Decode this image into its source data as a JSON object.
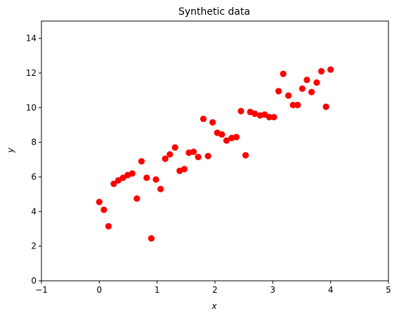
{
  "chart_data": {
    "type": "scatter",
    "title": "Synthetic data",
    "xlabel": "x",
    "ylabel": "y",
    "xlim": [
      -1,
      5
    ],
    "ylim": [
      0,
      15
    ],
    "xticks": [
      "−1",
      "0",
      "1",
      "2",
      "3",
      "4",
      "5"
    ],
    "yticks": [
      "0",
      "2",
      "4",
      "6",
      "8",
      "10",
      "12",
      "14"
    ],
    "grid": false,
    "marker_color": "#ff0000",
    "points": [
      {
        "x": 0.0,
        "y": 4.55
      },
      {
        "x": 0.08,
        "y": 4.1
      },
      {
        "x": 0.16,
        "y": 3.15
      },
      {
        "x": 0.25,
        "y": 5.6
      },
      {
        "x": 0.33,
        "y": 5.8
      },
      {
        "x": 0.41,
        "y": 5.95
      },
      {
        "x": 0.49,
        "y": 6.1
      },
      {
        "x": 0.57,
        "y": 6.2
      },
      {
        "x": 0.65,
        "y": 4.75
      },
      {
        "x": 0.73,
        "y": 6.9
      },
      {
        "x": 0.82,
        "y": 5.95
      },
      {
        "x": 0.9,
        "y": 2.45
      },
      {
        "x": 0.98,
        "y": 5.85
      },
      {
        "x": 1.06,
        "y": 5.3
      },
      {
        "x": 1.14,
        "y": 7.05
      },
      {
        "x": 1.22,
        "y": 7.3
      },
      {
        "x": 1.31,
        "y": 7.7
      },
      {
        "x": 1.39,
        "y": 6.35
      },
      {
        "x": 1.47,
        "y": 6.45
      },
      {
        "x": 1.55,
        "y": 7.4
      },
      {
        "x": 1.63,
        "y": 7.45
      },
      {
        "x": 1.71,
        "y": 7.15
      },
      {
        "x": 1.8,
        "y": 9.35
      },
      {
        "x": 1.88,
        "y": 7.2
      },
      {
        "x": 1.96,
        "y": 9.15
      },
      {
        "x": 2.04,
        "y": 8.55
      },
      {
        "x": 2.12,
        "y": 8.45
      },
      {
        "x": 2.2,
        "y": 8.1
      },
      {
        "x": 2.29,
        "y": 8.25
      },
      {
        "x": 2.37,
        "y": 8.3
      },
      {
        "x": 2.45,
        "y": 9.8
      },
      {
        "x": 2.53,
        "y": 7.25
      },
      {
        "x": 2.61,
        "y": 9.75
      },
      {
        "x": 2.69,
        "y": 9.65
      },
      {
        "x": 2.78,
        "y": 9.55
      },
      {
        "x": 2.86,
        "y": 9.6
      },
      {
        "x": 2.94,
        "y": 9.45
      },
      {
        "x": 3.02,
        "y": 9.45
      },
      {
        "x": 3.1,
        "y": 10.95
      },
      {
        "x": 3.18,
        "y": 11.95
      },
      {
        "x": 3.27,
        "y": 10.7
      },
      {
        "x": 3.35,
        "y": 10.15
      },
      {
        "x": 3.43,
        "y": 10.15
      },
      {
        "x": 3.51,
        "y": 11.1
      },
      {
        "x": 3.59,
        "y": 11.6
      },
      {
        "x": 3.67,
        "y": 10.9
      },
      {
        "x": 3.76,
        "y": 11.45
      },
      {
        "x": 3.84,
        "y": 12.1
      },
      {
        "x": 3.92,
        "y": 10.05
      },
      {
        "x": 4.0,
        "y": 12.2
      }
    ]
  }
}
